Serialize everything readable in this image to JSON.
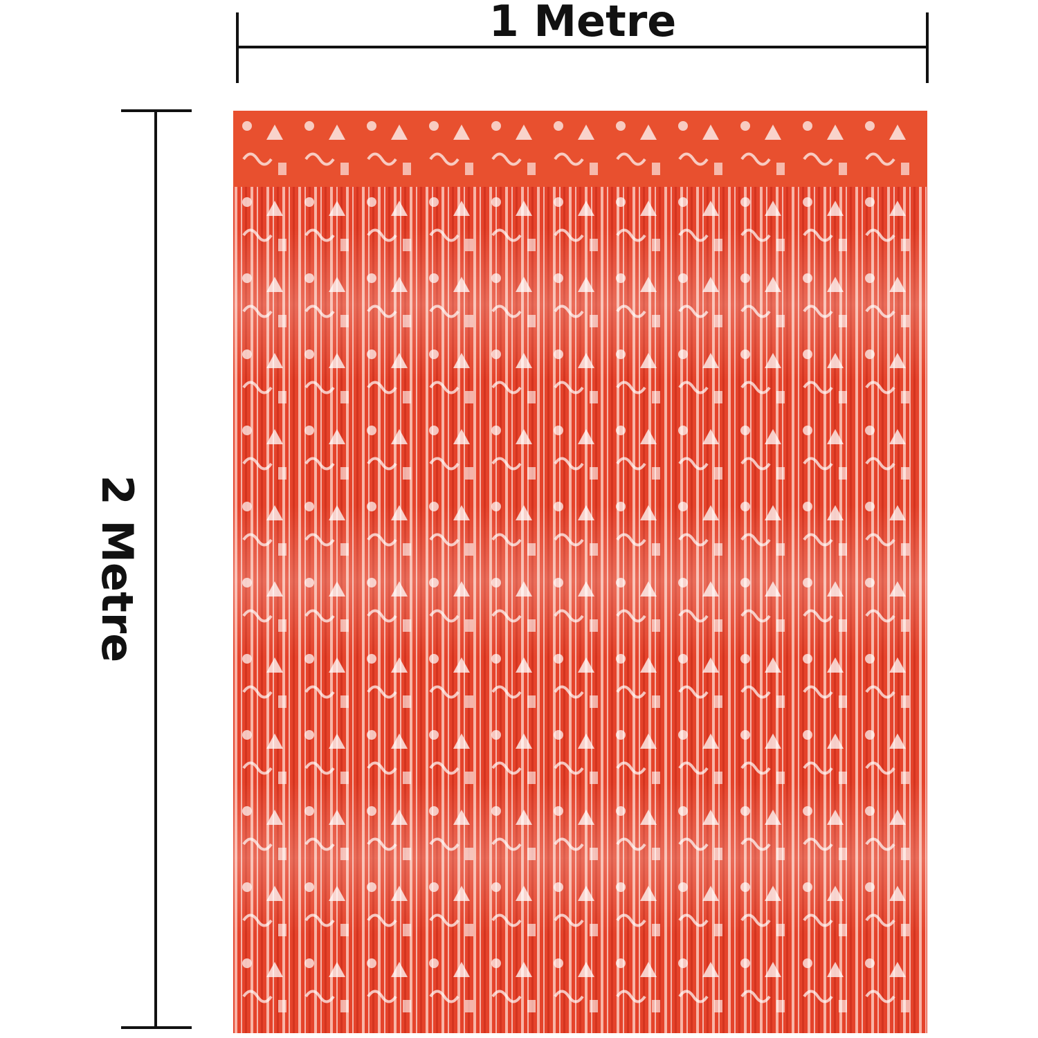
{
  "width_label": "1 Metre",
  "height_label": "2 Metre"
}
